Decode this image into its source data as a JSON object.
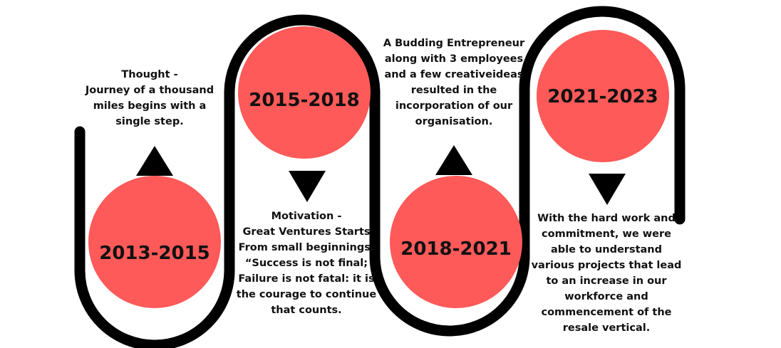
{
  "colors": {
    "path": "#000000",
    "milestone_fill": "#fe5a59",
    "text": "#111111",
    "background": "#ffffff"
  },
  "milestones": [
    {
      "year": "2013-2015",
      "arrow": "up",
      "caption": "Thought -\nJourney of a thousand\nmiles begins with a\nsingle step."
    },
    {
      "year": "2015-2018",
      "arrow": "down",
      "caption": "Motivation -\nGreat Ventures Starts\nFrom small beginnings.\n“Success is not final;\nFailure is not fatal: it is\nthe courage to continue\nthat counts."
    },
    {
      "year": "2018-2021",
      "arrow": "up",
      "caption": "A Budding Entrepreneur\nalong with 3 employees\nand a few creativeideas\nresulted in the\nincorporation of our\norganisation."
    },
    {
      "year": "2021-2023",
      "arrow": "down",
      "caption": "With the hard work and\ncommitment, we were\nable to understand\nvarious projects that lead\nto an increase in our\nworkforce and\ncommencement of the\nresale vertical."
    }
  ]
}
